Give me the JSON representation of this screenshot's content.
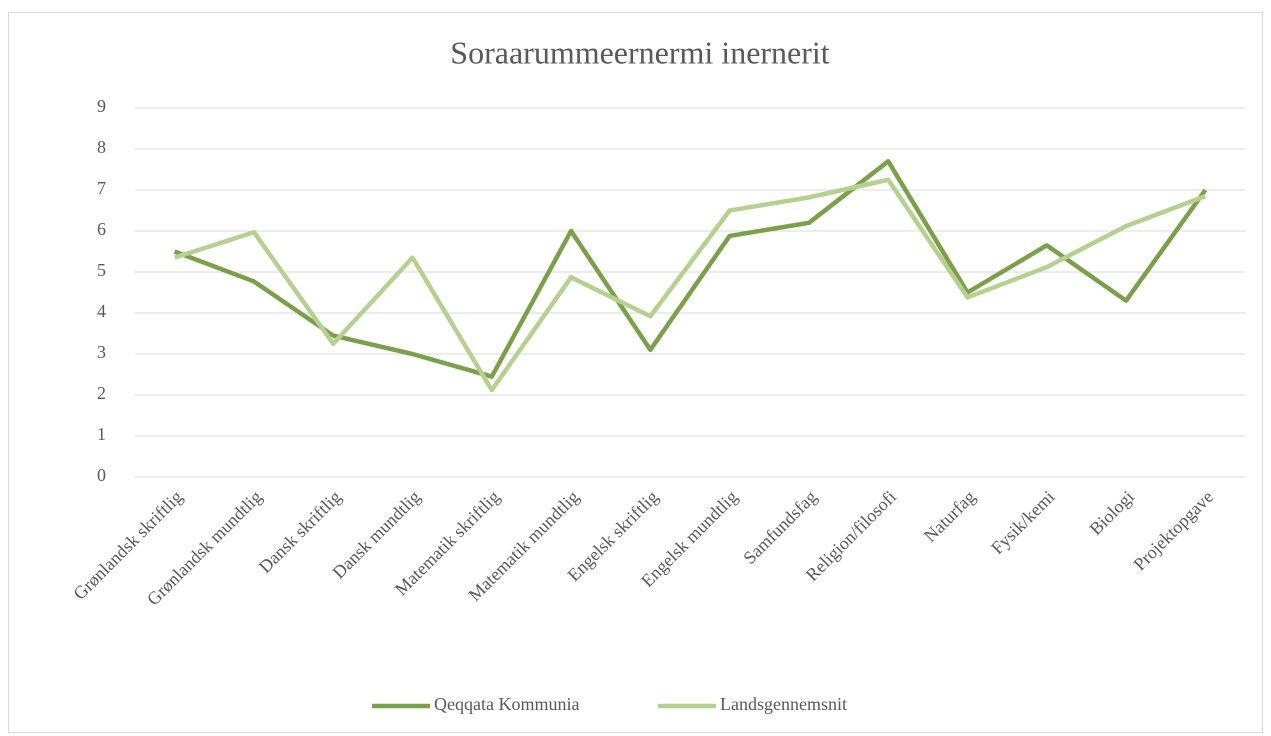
{
  "chart_data": {
    "type": "line",
    "title": "Soraarummeernermi inernerit",
    "categories": [
      "Grønlandsk skriftlig",
      "Grønlandsk mundtlig",
      "Dansk skriftlig",
      "Dansk mundtlig",
      "Matematik skriftlig",
      "Matematik mundtlig",
      "Engelsk skriftlig",
      "Engelsk mundtlig",
      "Samfundsfag",
      "Religion/filosofi",
      "Naturfag",
      "Fysik/kemi",
      "Biologi",
      "Projektopgave"
    ],
    "series": [
      {
        "name": "Qeqqata Kommunia",
        "color": "#7ba04a",
        "values": [
          5.5,
          4.77,
          3.45,
          3.0,
          2.45,
          6.0,
          3.1,
          5.88,
          6.2,
          7.7,
          4.5,
          5.65,
          4.3,
          7.0
        ]
      },
      {
        "name": "Landsgennemsnit",
        "color": "#b5d08f",
        "values": [
          5.35,
          5.97,
          3.25,
          5.35,
          2.12,
          4.87,
          3.92,
          6.5,
          6.82,
          7.25,
          4.38,
          5.12,
          6.12,
          6.85
        ]
      }
    ],
    "ylim": [
      0,
      9
    ],
    "yticks": [
      0,
      1,
      2,
      3,
      4,
      5,
      6,
      7,
      8,
      9
    ],
    "grid": true,
    "legend": "bottom"
  }
}
